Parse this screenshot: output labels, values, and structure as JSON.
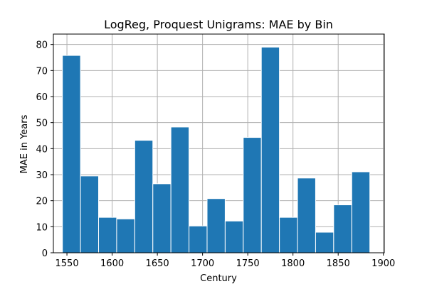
{
  "chart_data": {
    "type": "bar",
    "title": "LogReg, Proquest Unigrams: MAE by Bin",
    "xlabel": "Century",
    "ylabel": "MAE in Years",
    "bar_color": "#1f77b4",
    "grid": true,
    "xlim": [
      1535,
      1901
    ],
    "ylim": [
      0,
      84
    ],
    "xticks": [
      1550,
      1600,
      1650,
      1700,
      1750,
      1800,
      1850,
      1900
    ],
    "yticks": [
      0,
      10,
      20,
      30,
      40,
      50,
      60,
      70,
      80
    ],
    "bin_width": 20,
    "bins": [
      {
        "start": 1545,
        "value": 75.8
      },
      {
        "start": 1565,
        "value": 29.5
      },
      {
        "start": 1585,
        "value": 13.6
      },
      {
        "start": 1605,
        "value": 13.0
      },
      {
        "start": 1625,
        "value": 43.2
      },
      {
        "start": 1645,
        "value": 26.5
      },
      {
        "start": 1665,
        "value": 48.3
      },
      {
        "start": 1685,
        "value": 10.3
      },
      {
        "start": 1705,
        "value": 20.8
      },
      {
        "start": 1725,
        "value": 12.2
      },
      {
        "start": 1745,
        "value": 44.3
      },
      {
        "start": 1765,
        "value": 79.0
      },
      {
        "start": 1785,
        "value": 13.6
      },
      {
        "start": 1805,
        "value": 28.7
      },
      {
        "start": 1825,
        "value": 7.9
      },
      {
        "start": 1845,
        "value": 18.4
      },
      {
        "start": 1865,
        "value": 31.1
      }
    ]
  }
}
